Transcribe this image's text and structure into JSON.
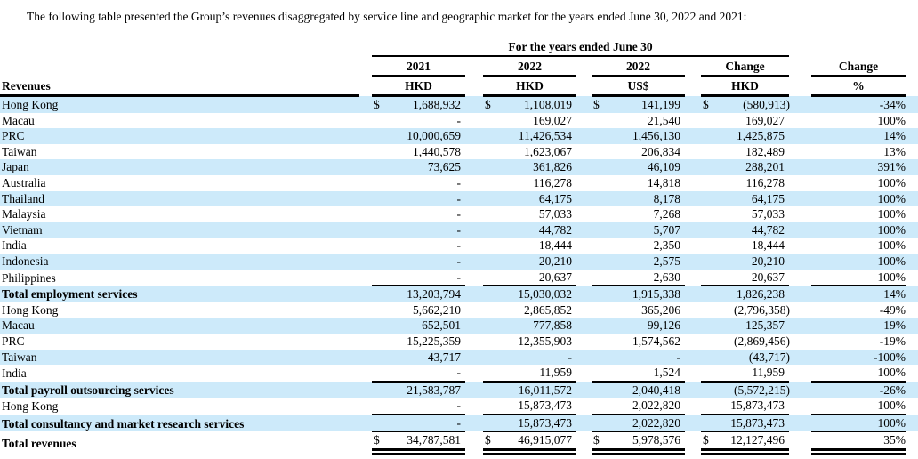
{
  "page": {
    "intro": "The following table presented the Group’s revenues disaggregated by service line and geographic market for the years ended June 30, 2022 and 2021:"
  },
  "table": {
    "span_header": "For the years ended June 30",
    "row_header": "Revenues",
    "columns": [
      {
        "year": "2021",
        "unit": "HKD"
      },
      {
        "year": "2022",
        "unit": "HKD"
      },
      {
        "year": "2022",
        "unit": "US$"
      },
      {
        "year": "Change",
        "unit": "HKD"
      },
      {
        "year": "Change",
        "unit": "%"
      }
    ],
    "rows": [
      {
        "label": "Hong Kong",
        "shaded": true,
        "dollar": true,
        "values": [
          "1,688,932",
          "1,108,019",
          "141,199",
          "(580,913)",
          "-34%"
        ]
      },
      {
        "label": "Macau",
        "shaded": false,
        "values": [
          "-",
          "169,027",
          "21,540",
          "169,027",
          "100%"
        ]
      },
      {
        "label": "PRC",
        "shaded": true,
        "values": [
          "10,000,659",
          "11,426,534",
          "1,456,130",
          "1,425,875",
          "14%"
        ]
      },
      {
        "label": "Taiwan",
        "shaded": false,
        "values": [
          "1,440,578",
          "1,623,067",
          "206,834",
          "182,489",
          "13%"
        ]
      },
      {
        "label": "Japan",
        "shaded": true,
        "values": [
          "73,625",
          "361,826",
          "46,109",
          "288,201",
          "391%"
        ]
      },
      {
        "label": "Australia",
        "shaded": false,
        "values": [
          "-",
          "116,278",
          "14,818",
          "116,278",
          "100%"
        ]
      },
      {
        "label": "Thailand",
        "shaded": true,
        "values": [
          "-",
          "64,175",
          "8,178",
          "64,175",
          "100%"
        ]
      },
      {
        "label": "Malaysia",
        "shaded": false,
        "values": [
          "-",
          "57,033",
          "7,268",
          "57,033",
          "100%"
        ]
      },
      {
        "label": "Vietnam",
        "shaded": true,
        "values": [
          "-",
          "44,782",
          "5,707",
          "44,782",
          "100%"
        ]
      },
      {
        "label": "India",
        "shaded": false,
        "values": [
          "-",
          "18,444",
          "2,350",
          "18,444",
          "100%"
        ]
      },
      {
        "label": "Indonesia",
        "shaded": true,
        "values": [
          "-",
          "20,210",
          "2,575",
          "20,210",
          "100%"
        ]
      },
      {
        "label": "Philippines",
        "shaded": false,
        "values": [
          "-",
          "20,637",
          "2,630",
          "20,637",
          "100%"
        ]
      },
      {
        "label": "Total employment services",
        "shaded": true,
        "bold": true,
        "top_border": true,
        "values": [
          "13,203,794",
          "15,030,032",
          "1,915,338",
          "1,826,238",
          "14%"
        ]
      },
      {
        "label": "Hong Kong",
        "shaded": false,
        "values": [
          "5,662,210",
          "2,865,852",
          "365,206",
          "(2,796,358)",
          "-49%"
        ]
      },
      {
        "label": "Macau",
        "shaded": true,
        "values": [
          "652,501",
          "777,858",
          "99,126",
          "125,357",
          "19%"
        ]
      },
      {
        "label": "PRC",
        "shaded": false,
        "values": [
          "15,225,359",
          "12,355,903",
          "1,574,562",
          "(2,869,456)",
          "-19%"
        ]
      },
      {
        "label": "Taiwan",
        "shaded": true,
        "values": [
          "43,717",
          "-",
          "-",
          "(43,717)",
          "-100%"
        ]
      },
      {
        "label": "India",
        "shaded": false,
        "values": [
          "-",
          "11,959",
          "1,524",
          "11,959",
          "100%"
        ]
      },
      {
        "label": "Total payroll outsourcing services",
        "shaded": true,
        "bold": true,
        "top_border": true,
        "values": [
          "21,583,787",
          "16,011,572",
          "2,040,418",
          "(5,572,215)",
          "-26%"
        ]
      },
      {
        "label": "Hong Kong",
        "shaded": false,
        "values": [
          "-",
          "15,873,473",
          "2,022,820",
          "15,873,473",
          "100%"
        ]
      },
      {
        "label": "Total consultancy and market research services",
        "shaded": true,
        "bold": true,
        "top_border": true,
        "values": [
          "-",
          "15,873,473",
          "2,022,820",
          "15,873,473",
          "100%"
        ]
      },
      {
        "label": "Total revenues",
        "shaded": false,
        "bold": true,
        "top_border": true,
        "double_bottom": true,
        "dollar": true,
        "values": [
          "34,787,581",
          "46,915,077",
          "5,978,576",
          "12,127,496",
          "35%"
        ]
      }
    ]
  },
  "colors": {
    "row_shade": "#cdeafa",
    "text": "#000000",
    "border": "#000000"
  }
}
